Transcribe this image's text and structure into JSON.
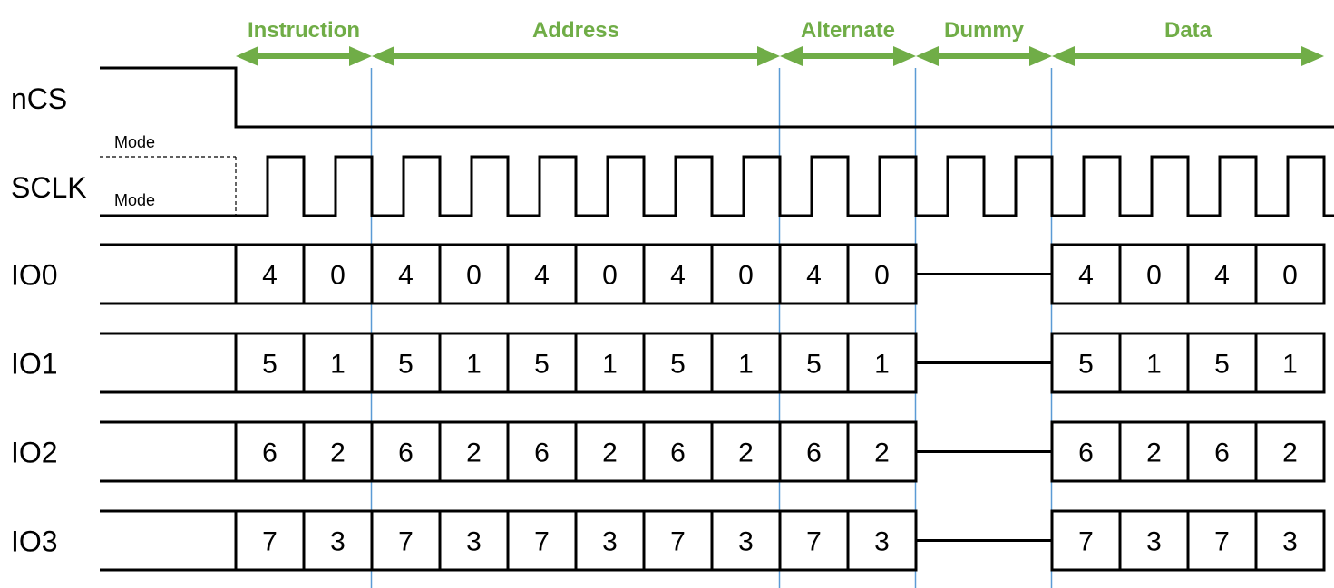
{
  "colors": {
    "phase": "#70ad47",
    "divider": "#5b9bd5",
    "line": "#000000"
  },
  "phases": [
    {
      "label": "Instruction",
      "cycles": 2
    },
    {
      "label": "Address",
      "cycles": 6
    },
    {
      "label": "Alternate",
      "cycles": 2
    },
    {
      "label": "Dummy",
      "cycles": 2
    },
    {
      "label": "Data",
      "cycles": 4
    }
  ],
  "signals": {
    "ncs": "nCS",
    "sclk": "SCLK"
  },
  "mode_labels": {
    "high": "Mode",
    "low": "Mode"
  },
  "io_lines": [
    {
      "label": "IO0",
      "cells": [
        "4",
        "0",
        "4",
        "0",
        "4",
        "0",
        "4",
        "0",
        "4",
        "0"
      ],
      "data_cells": [
        "4",
        "0",
        "4",
        "0"
      ]
    },
    {
      "label": "IO1",
      "cells": [
        "5",
        "1",
        "5",
        "1",
        "5",
        "1",
        "5",
        "1",
        "5",
        "1"
      ],
      "data_cells": [
        "5",
        "1",
        "5",
        "1"
      ]
    },
    {
      "label": "IO2",
      "cells": [
        "6",
        "2",
        "6",
        "2",
        "6",
        "2",
        "6",
        "2",
        "6",
        "2"
      ],
      "data_cells": [
        "6",
        "2",
        "6",
        "2"
      ]
    },
    {
      "label": "IO3",
      "cells": [
        "7",
        "3",
        "7",
        "3",
        "7",
        "3",
        "7",
        "3",
        "7",
        "3"
      ],
      "data_cells": [
        "7",
        "3",
        "7",
        "3"
      ]
    }
  ]
}
